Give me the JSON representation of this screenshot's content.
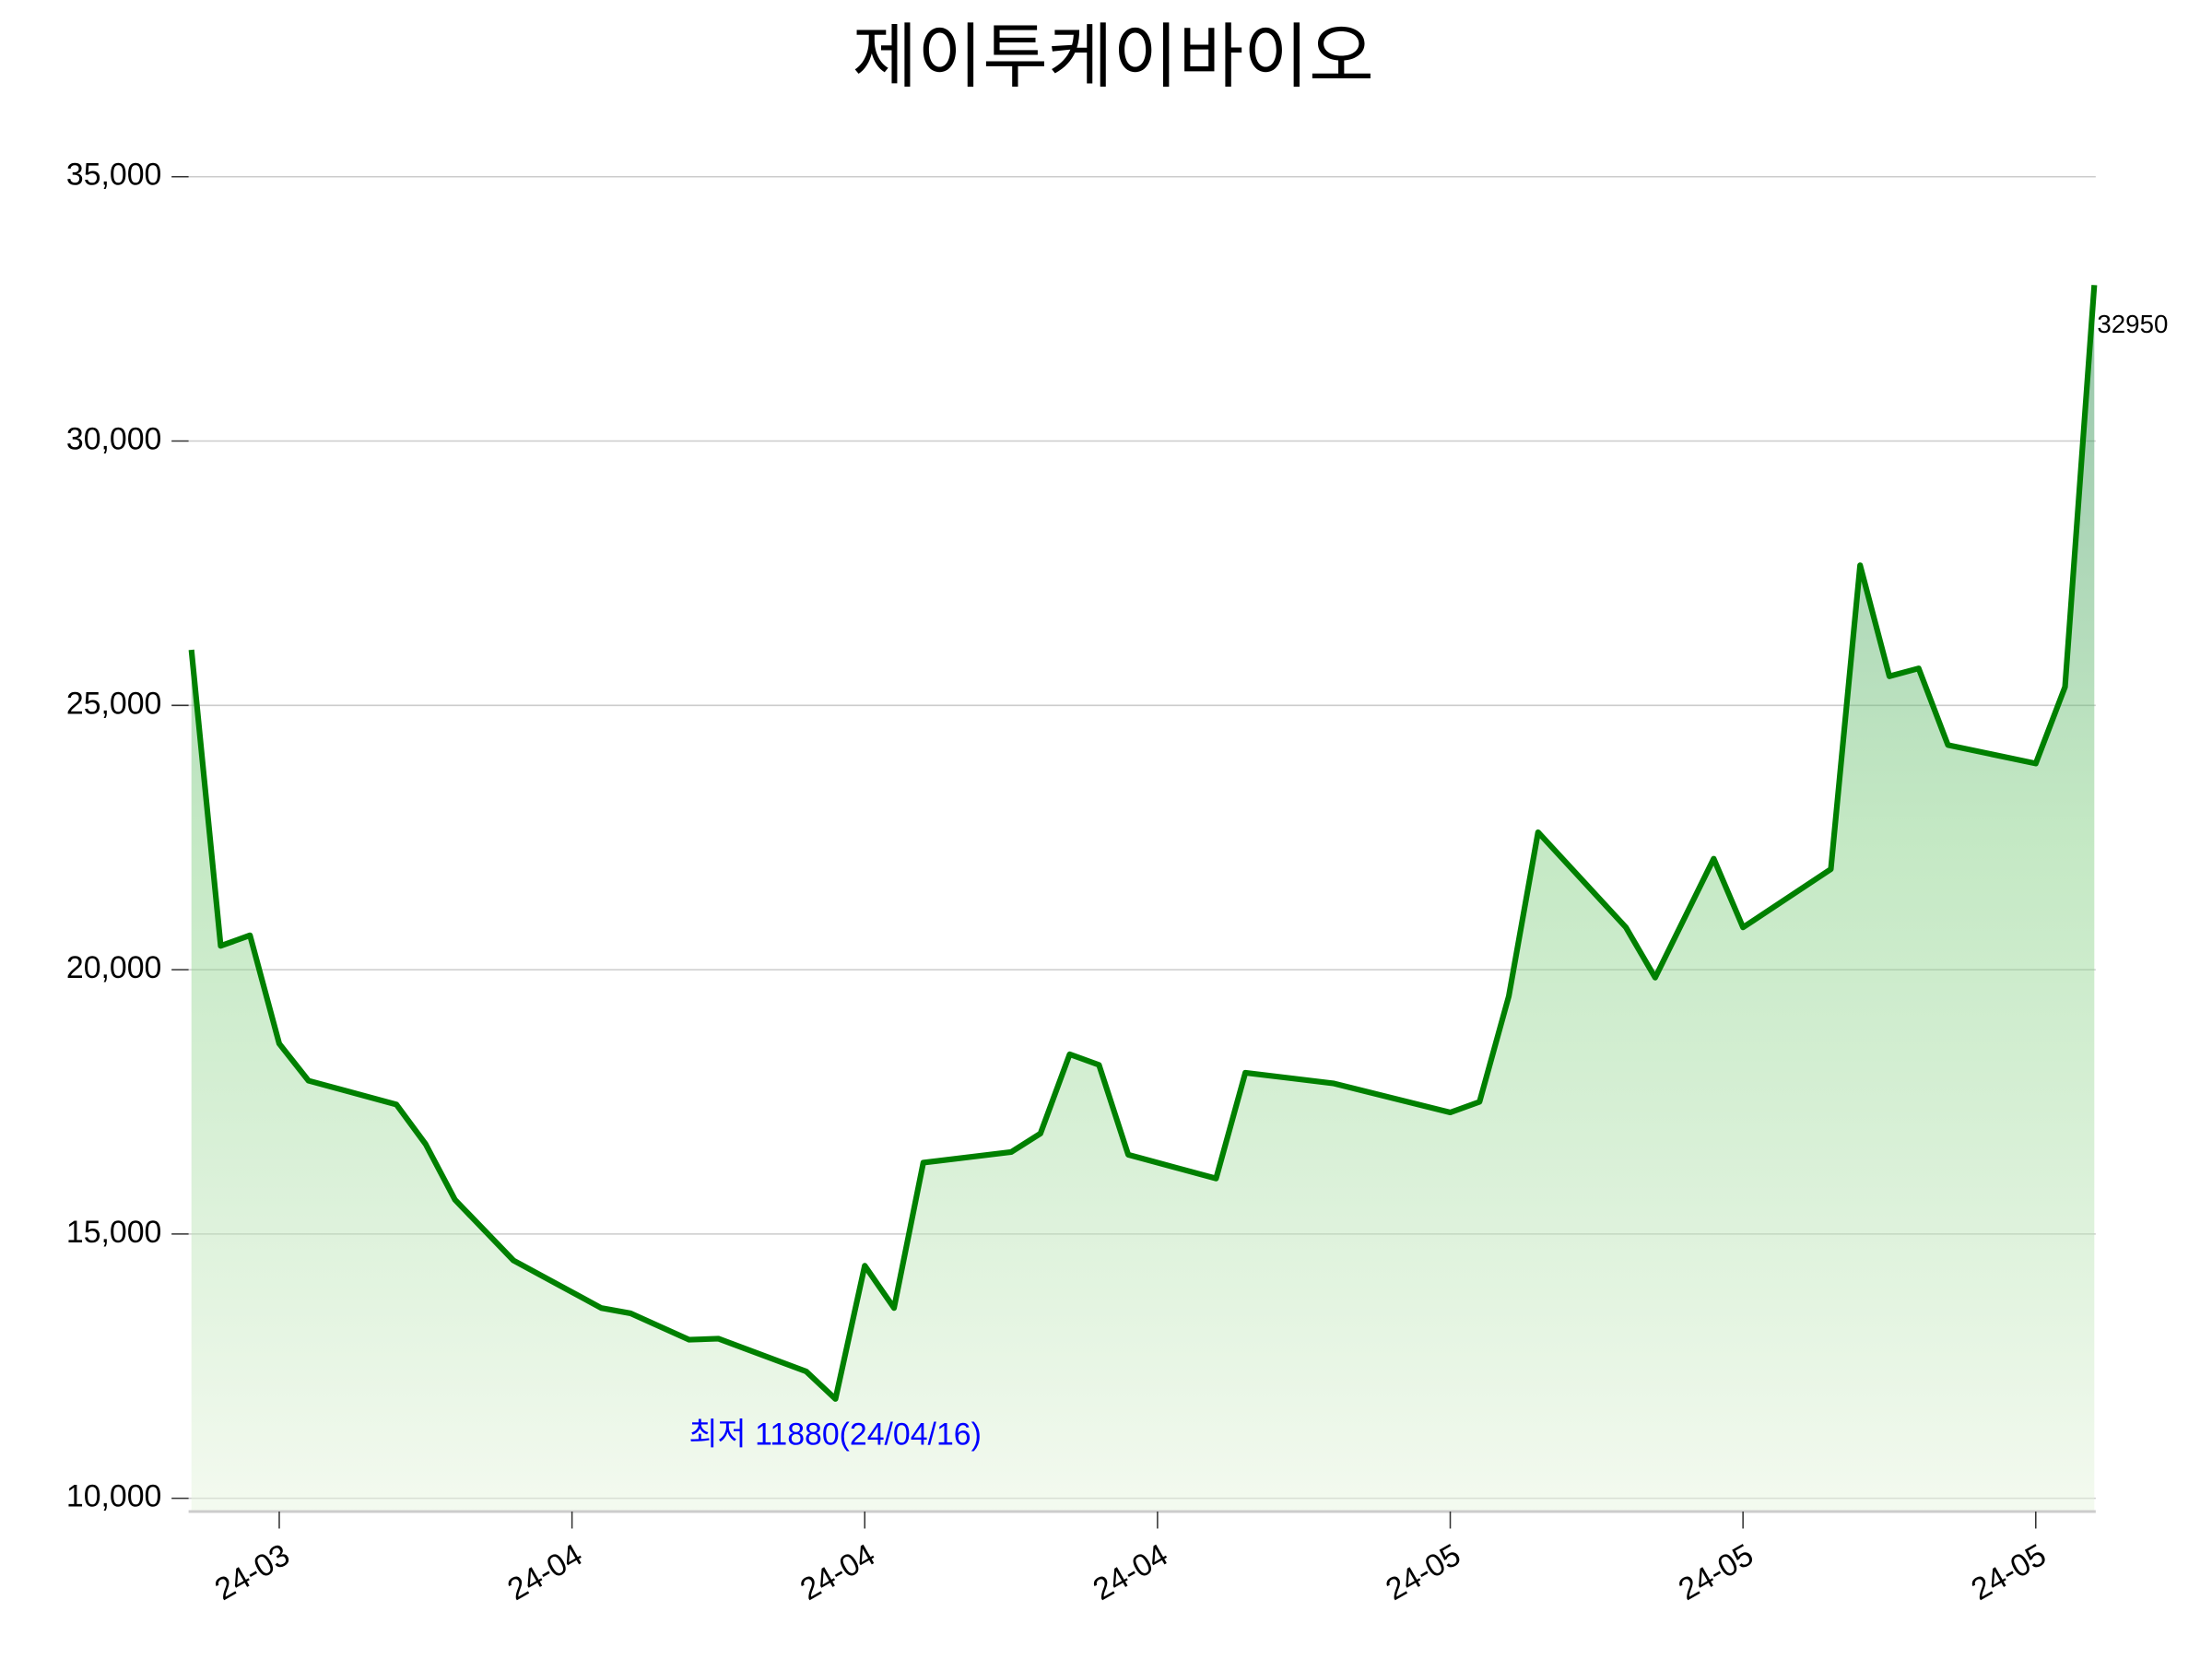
{
  "chart_data": {
    "type": "line",
    "title": "제이투케이바이오",
    "x": [
      "2024-03-25",
      "2024-03-26",
      "2024-03-27",
      "2024-03-28",
      "2024-03-29",
      "2024-04-01",
      "2024-04-02",
      "2024-04-03",
      "2024-04-05",
      "2024-04-08",
      "2024-04-09",
      "2024-04-11",
      "2024-04-12",
      "2024-04-15",
      "2024-04-16",
      "2024-04-17",
      "2024-04-18",
      "2024-04-19",
      "2024-04-22",
      "2024-04-23",
      "2024-04-24",
      "2024-04-25",
      "2024-04-26",
      "2024-04-29",
      "2024-04-30",
      "2024-05-03",
      "2024-05-07",
      "2024-05-08",
      "2024-05-09",
      "2024-05-10",
      "2024-05-13",
      "2024-05-14",
      "2024-05-16",
      "2024-05-17",
      "2024-05-20",
      "2024-05-21",
      "2024-05-22",
      "2024-05-23",
      "2024-05-24",
      "2024-05-27",
      "2024-05-28",
      "2024-05-29"
    ],
    "values": [
      26050,
      20450,
      20650,
      18600,
      17900,
      17450,
      16700,
      15650,
      14500,
      13600,
      13500,
      13000,
      13020,
      12400,
      11880,
      14400,
      13600,
      16350,
      16550,
      16900,
      18400,
      18200,
      16500,
      16050,
      18050,
      17850,
      17300,
      17500,
      19500,
      22600,
      20800,
      19850,
      22100,
      20800,
      21900,
      27650,
      25550,
      25700,
      24250,
      23900,
      25350,
      32950
    ],
    "color": "#008000",
    "xlim": [
      "2024-03-25",
      "2024-05-29"
    ],
    "xticks": [
      {
        "value": "2024-03-28",
        "label": "24-03"
      },
      {
        "value": "2024-04-07",
        "label": "24-04"
      },
      {
        "value": "2024-04-17",
        "label": "24-04"
      },
      {
        "value": "2024-04-27",
        "label": "24-04"
      },
      {
        "value": "2024-05-07",
        "label": "24-05"
      },
      {
        "value": "2024-05-17",
        "label": "24-05"
      },
      {
        "value": "2024-05-27",
        "label": "24-05"
      }
    ],
    "ylim": [
      9750,
      35500
    ],
    "yticks": [
      {
        "value": 10000,
        "label": "10,000"
      },
      {
        "value": 15000,
        "label": "15,000"
      },
      {
        "value": 20000,
        "label": "20,000"
      },
      {
        "value": 25000,
        "label": "25,000"
      },
      {
        "value": 30000,
        "label": "30,000"
      },
      {
        "value": 35000,
        "label": "35,000"
      }
    ],
    "grid": true,
    "annotations": [
      "32950",
      "최저 11880(24/04/16)"
    ]
  }
}
